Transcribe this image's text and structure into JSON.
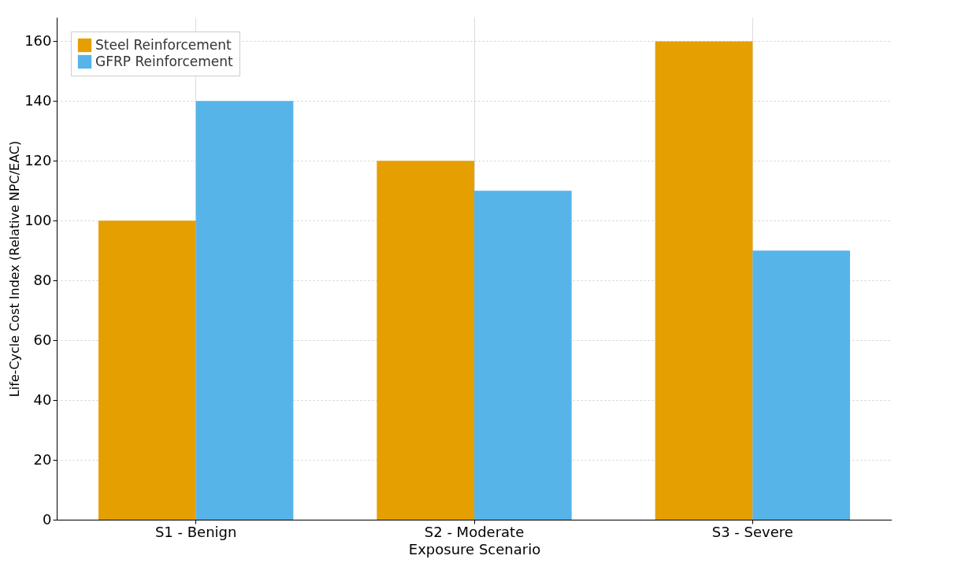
{
  "chart_data": {
    "type": "bar",
    "xlabel": "Exposure Scenario",
    "ylabel": "Life-Cycle Cost Index (Relative NPC/EAC)",
    "categories": [
      "S1 - Benign",
      "S2 - Moderate",
      "S3 - Severe"
    ],
    "series": [
      {
        "name": "Steel Reinforcement",
        "color": "#e69f00",
        "values": [
          100,
          120,
          160
        ]
      },
      {
        "name": "GFRP Reinforcement",
        "color": "#56b4e9",
        "values": [
          140,
          110,
          90
        ]
      }
    ],
    "ylim": [
      0,
      168
    ],
    "yticks": [
      0,
      20,
      40,
      60,
      80,
      100,
      120,
      140,
      160
    ],
    "grid": true,
    "legend": "top left"
  }
}
